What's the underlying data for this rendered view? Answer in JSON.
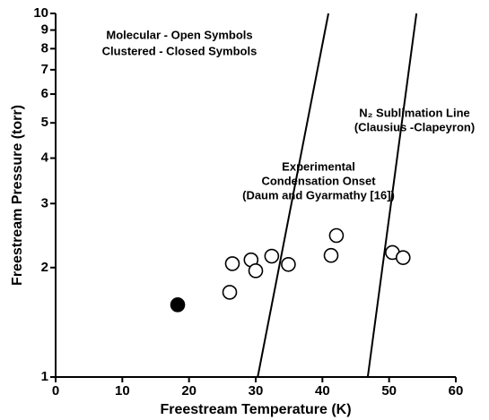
{
  "chart_data": {
    "type": "scatter",
    "xlabel": "Freestream Temperature (K)",
    "ylabel": "Freestream Pressure (torr)",
    "xlim": [
      0,
      60
    ],
    "xticks": [
      0,
      10,
      20,
      30,
      40,
      50,
      60
    ],
    "ylim": [
      1,
      10
    ],
    "yticks": [
      1,
      2,
      3,
      4,
      5,
      6,
      7,
      8,
      9,
      10
    ],
    "log_y": true,
    "color": "#000000",
    "series": [
      {
        "marker": "open",
        "x": [
          26.1,
          26.5,
          29.3,
          30.0,
          32.4,
          34.9,
          41.3,
          42.1,
          50.5,
          52.1
        ],
        "values": [
          1.71,
          2.05,
          2.1,
          1.96,
          2.15,
          2.04,
          2.16,
          2.45,
          2.2,
          2.13
        ]
      },
      {
        "marker": "closed",
        "x": [
          18.3
        ],
        "values": [
          1.58
        ]
      }
    ],
    "lines": [
      {
        "x": [
          30.3,
          40.9
        ],
        "values": [
          1,
          10
        ]
      },
      {
        "x": [
          46.8,
          54.1
        ],
        "values": [
          1,
          10
        ]
      }
    ],
    "annotations": [
      "Molecular - Open Symbols",
      "Clustered - Closed Symbols",
      "Experimental",
      "Condensation Onset",
      "(Daum and Gyarmathy [16])",
      "N₂ Sublimation Line",
      "(Clausius -Clapeyron)"
    ]
  }
}
